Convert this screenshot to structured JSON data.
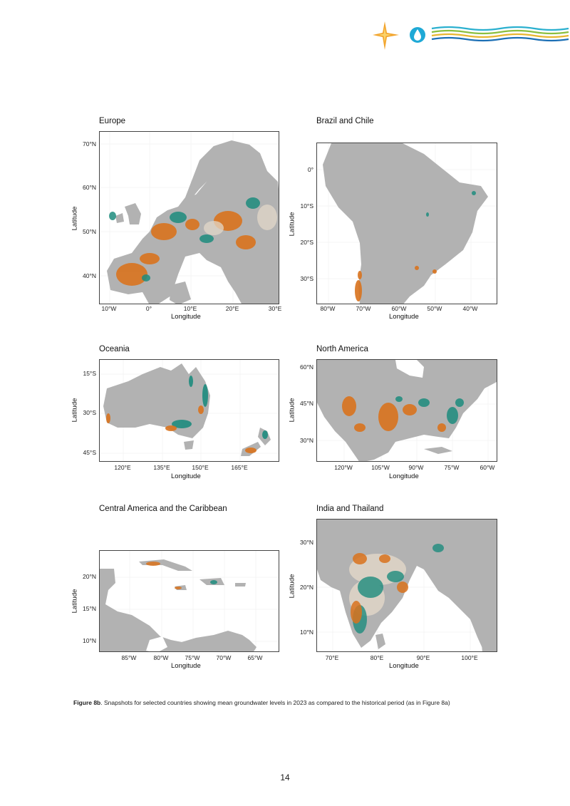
{
  "header": {
    "logo_icon": "compass-star-water-drop-waves-logo",
    "colors": {
      "star": "#f2a42d",
      "drop": "#1fa9d6",
      "wave_green": "#8bbf3f",
      "wave_yellow": "#e8b631",
      "wave_blue": "#1c6fb5",
      "wave_cyan": "#2bb0cf"
    }
  },
  "legend_colors": {
    "decline": "#d9731e",
    "rise": "#1e8c7e",
    "land": "#b2b2b2",
    "normal": "#e3d8c9"
  },
  "panels": [
    {
      "title": "Europe",
      "xlabel": "Longitude",
      "ylabel": "Latitude",
      "yticks": [
        "70°N",
        "60°N",
        "50°N",
        "40°N"
      ],
      "xticks": [
        "10°W",
        "0°",
        "10°E",
        "20°E",
        "30°E"
      ]
    },
    {
      "title": "Brazil and Chile",
      "xlabel": "Longitude",
      "ylabel": "Latitude",
      "yticks": [
        "0°",
        "10°S",
        "20°S",
        "30°S"
      ],
      "xticks": [
        "80°W",
        "70°W",
        "60°W",
        "50°W",
        "40°W"
      ]
    },
    {
      "title": "Oceania",
      "xlabel": "Longitude",
      "ylabel": "Latitude",
      "yticks": [
        "15°S",
        "30°S",
        "45°S"
      ],
      "xticks": [
        "120°E",
        "135°E",
        "150°E",
        "165°E"
      ]
    },
    {
      "title": "North America",
      "xlabel": "Longitude",
      "ylabel": "Latitude",
      "yticks": [
        "60°N",
        "45°N",
        "30°N"
      ],
      "xticks": [
        "120°W",
        "105°W",
        "90°W",
        "75°W",
        "60°W"
      ]
    },
    {
      "title": "Central America and the Caribbean",
      "xlabel": "Longitude",
      "ylabel": "Latitude",
      "yticks": [
        "20°N",
        "15°N",
        "10°N"
      ],
      "xticks": [
        "85°W",
        "80°W",
        "75°W",
        "70°W",
        "65°W"
      ]
    },
    {
      "title": "India and Thailand",
      "xlabel": "Longitude",
      "ylabel": "Latitude",
      "yticks": [
        "30°N",
        "20°N",
        "10°N"
      ],
      "xticks": [
        "70°E",
        "80°E",
        "90°E",
        "100°E"
      ]
    }
  ],
  "caption": {
    "label": "Figure 8b",
    "text": ". Snapshots for selected countries showing mean groundwater levels in 2023 as compared to the historical period (as in Figure 8a)"
  },
  "page_number": "14"
}
